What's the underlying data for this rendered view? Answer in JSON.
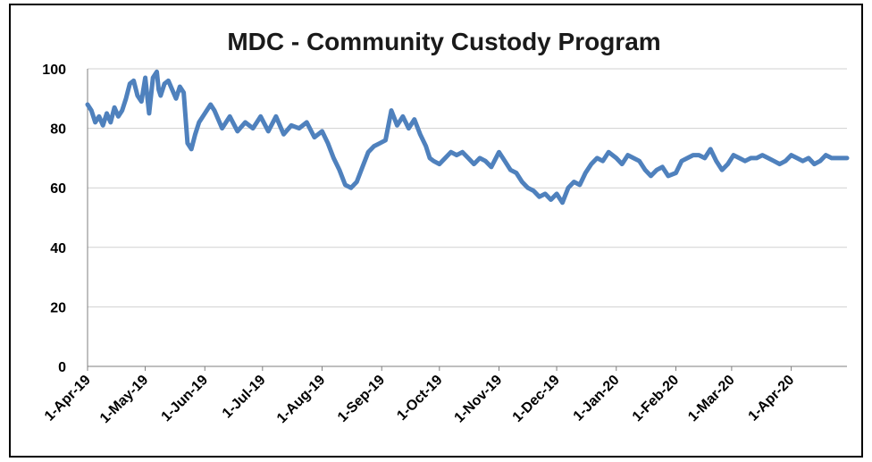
{
  "chart_data": {
    "type": "line",
    "title": "MDC - Community Custody Program",
    "xlabel": "",
    "ylabel": "",
    "ylim": [
      0,
      100
    ],
    "yticks": [
      0,
      20,
      40,
      60,
      80,
      100
    ],
    "xticks": [
      "1-Apr-19",
      "1-May-19",
      "1-Jun-19",
      "1-Jul-19",
      "1-Aug-19",
      "1-Sep-19",
      "1-Oct-19",
      "1-Nov-19",
      "1-Dec-19",
      "1-Jan-20",
      "1-Feb-20",
      "1-Mar-20",
      "1-Apr-20"
    ],
    "xrange": [
      "2019-04-01",
      "2020-04-30"
    ],
    "grid": "horizontal",
    "legend": "none",
    "line_color": "#4f81bd",
    "series": [
      {
        "x": [
          "2019-04-01",
          "2019-04-03",
          "2019-04-05",
          "2019-04-07",
          "2019-04-09",
          "2019-04-11",
          "2019-04-13",
          "2019-04-15",
          "2019-04-17",
          "2019-04-19",
          "2019-04-21",
          "2019-04-23",
          "2019-04-25",
          "2019-04-27",
          "2019-04-29",
          "2019-05-01",
          "2019-05-03",
          "2019-05-05",
          "2019-05-07",
          "2019-05-08",
          "2019-05-09",
          "2019-05-11",
          "2019-05-13",
          "2019-05-15",
          "2019-05-17",
          "2019-05-19",
          "2019-05-21",
          "2019-05-23",
          "2019-05-25",
          "2019-05-27",
          "2019-05-29",
          "2019-05-31",
          "2019-06-02",
          "2019-06-04",
          "2019-06-06",
          "2019-06-08",
          "2019-06-10",
          "2019-06-14",
          "2019-06-18",
          "2019-06-22",
          "2019-06-26",
          "2019-06-30",
          "2019-07-04",
          "2019-07-08",
          "2019-07-12",
          "2019-07-16",
          "2019-07-20",
          "2019-07-24",
          "2019-07-28",
          "2019-08-01",
          "2019-08-04",
          "2019-08-07",
          "2019-08-10",
          "2019-08-13",
          "2019-08-16",
          "2019-08-19",
          "2019-08-22",
          "2019-08-25",
          "2019-08-28",
          "2019-08-31",
          "2019-09-03",
          "2019-09-06",
          "2019-09-09",
          "2019-09-12",
          "2019-09-15",
          "2019-09-18",
          "2019-09-21",
          "2019-09-24",
          "2019-09-26",
          "2019-09-28",
          "2019-10-01",
          "2019-10-04",
          "2019-10-07",
          "2019-10-10",
          "2019-10-13",
          "2019-10-16",
          "2019-10-19",
          "2019-10-22",
          "2019-10-25",
          "2019-10-28",
          "2019-11-01",
          "2019-11-04",
          "2019-11-07",
          "2019-11-10",
          "2019-11-13",
          "2019-11-16",
          "2019-11-19",
          "2019-11-22",
          "2019-11-25",
          "2019-11-28",
          "2019-12-01",
          "2019-12-04",
          "2019-12-07",
          "2019-12-10",
          "2019-12-13",
          "2019-12-16",
          "2019-12-19",
          "2019-12-22",
          "2019-12-25",
          "2019-12-28",
          "2020-01-01",
          "2020-01-04",
          "2020-01-07",
          "2020-01-10",
          "2020-01-13",
          "2020-01-16",
          "2020-01-19",
          "2020-01-22",
          "2020-01-25",
          "2020-01-28",
          "2020-02-01",
          "2020-02-04",
          "2020-02-07",
          "2020-02-10",
          "2020-02-13",
          "2020-02-16",
          "2020-02-19",
          "2020-02-22",
          "2020-02-25",
          "2020-02-28",
          "2020-03-02",
          "2020-03-05",
          "2020-03-08",
          "2020-03-11",
          "2020-03-14",
          "2020-03-17",
          "2020-03-20",
          "2020-03-23",
          "2020-03-26",
          "2020-03-29",
          "2020-04-01",
          "2020-04-04",
          "2020-04-07",
          "2020-04-10",
          "2020-04-13",
          "2020-04-16",
          "2020-04-19",
          "2020-04-22",
          "2020-04-25",
          "2020-04-28",
          "2020-04-30"
        ],
        "y": [
          88,
          86,
          82,
          84,
          81,
          85,
          82,
          87,
          84,
          86,
          90,
          95,
          96,
          91,
          89,
          97,
          85,
          97,
          99,
          93,
          91,
          95,
          96,
          93,
          90,
          94,
          92,
          75,
          73,
          78,
          82,
          84,
          86,
          88,
          86,
          83,
          80,
          84,
          79,
          82,
          80,
          84,
          79,
          84,
          78,
          81,
          80,
          82,
          77,
          79,
          75,
          70,
          66,
          61,
          60,
          62,
          67,
          72,
          74,
          75,
          76,
          86,
          81,
          84,
          80,
          83,
          78,
          74,
          70,
          69,
          68,
          70,
          72,
          71,
          72,
          70,
          68,
          70,
          69,
          67,
          72,
          69,
          66,
          65,
          62,
          60,
          59,
          57,
          58,
          56,
          58,
          55,
          60,
          62,
          61,
          65,
          68,
          70,
          69,
          72,
          70,
          68,
          71,
          70,
          69,
          66,
          64,
          66,
          67,
          64,
          65,
          69,
          70,
          71,
          71,
          70,
          73,
          69,
          66,
          68,
          71,
          70,
          69,
          70,
          70,
          71,
          70,
          69,
          68,
          69,
          71,
          70,
          69,
          70,
          68,
          69,
          71,
          70,
          70,
          70,
          70
        ]
      }
    ]
  }
}
